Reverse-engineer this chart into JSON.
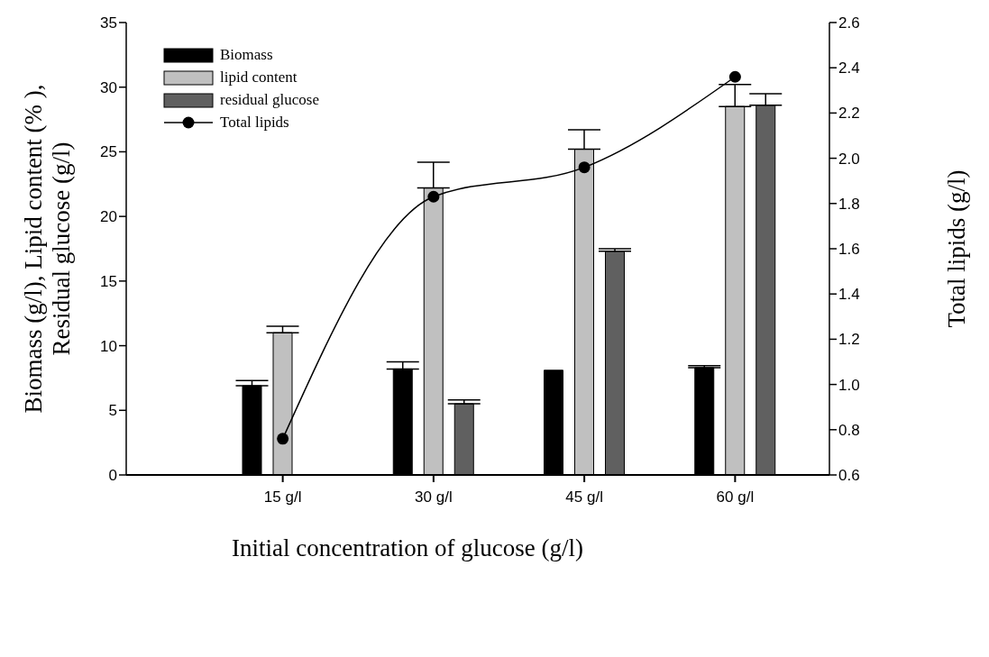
{
  "chart_data": {
    "type": "bar",
    "xlabel": "Initial concentration of glucose (g/l)",
    "ylabel": "Biomass (g/l), Lipid content (% ),\nResidual glucose (g/l)",
    "y2label": "Total lipids (g/l)",
    "categories": [
      "15 g/l",
      "30 g/l",
      "45 g/l",
      "60 g/l"
    ],
    "series": [
      {
        "name": "Biomass",
        "color": "#000000",
        "values": [
          6.9,
          8.2,
          8.1,
          8.3
        ],
        "errors": [
          [
            6.9,
            7.3
          ],
          [
            8.2,
            8.75
          ],
          null,
          [
            8.3,
            8.45
          ]
        ]
      },
      {
        "name": "lipid content",
        "color": "#c0c0c0",
        "values": [
          11.0,
          22.2,
          25.2,
          28.5
        ],
        "errors": [
          [
            11.0,
            11.5
          ],
          [
            22.2,
            24.2
          ],
          [
            25.2,
            26.7
          ],
          [
            28.5,
            30.2
          ]
        ]
      },
      {
        "name": "residual glucose",
        "color": "#606060",
        "values": [
          null,
          5.5,
          17.3,
          28.6
        ],
        "errors": [
          null,
          [
            5.5,
            5.8
          ],
          [
            17.3,
            17.5
          ],
          [
            28.6,
            29.5
          ]
        ]
      },
      {
        "name": "Total lipids",
        "type": "line",
        "axis": "y2",
        "color": "#000000",
        "marker": "circle",
        "values": [
          0.76,
          1.83,
          1.96,
          2.36
        ]
      }
    ],
    "ylim": [
      0,
      35
    ],
    "yticks": [
      0,
      5,
      10,
      15,
      20,
      25,
      30,
      35
    ],
    "y2lim": [
      0.6,
      2.6
    ],
    "y2ticks": [
      0.6,
      0.8,
      {
        "value": 1,
        "label": "1.0"
      },
      1.2,
      1.4,
      1.6,
      1.8,
      {
        "value": 2,
        "label": "2.0"
      },
      2.2,
      2.4,
      2.6
    ],
    "grid": false,
    "legend": "top left"
  }
}
